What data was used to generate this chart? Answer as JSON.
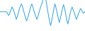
{
  "line_color": "#4aabdb",
  "background_color": "#ffffff",
  "values": [
    0.0,
    0.0,
    0.0,
    0.0,
    0.0,
    0.0,
    0.0,
    0.0,
    -0.1,
    -0.3,
    -0.5,
    -0.3,
    0.0,
    0.3,
    0.6,
    0.4,
    0.1,
    -0.2,
    -0.6,
    -1.0,
    -0.7,
    -0.3,
    0.1,
    0.5,
    0.8,
    1.0,
    0.7,
    0.3,
    -0.1,
    -0.5,
    -0.9,
    -1.2,
    -0.9,
    -0.5,
    -0.1,
    0.3,
    0.7,
    1.0,
    0.7,
    0.3,
    -0.1,
    -0.4,
    -0.7,
    -1.0,
    -0.7,
    -0.3,
    0.1,
    0.5,
    0.8,
    1.1,
    1.5,
    1.8,
    2.2,
    1.8,
    1.2,
    0.5,
    -0.2,
    -0.8,
    -1.4,
    -1.8,
    -1.3,
    -0.7,
    -0.1,
    0.5,
    1.0,
    0.6,
    0.1,
    -0.4,
    -0.9,
    -1.4,
    -1.0,
    -0.5,
    0.0,
    0.5,
    0.9,
    0.5,
    0.0,
    -0.6,
    -1.2,
    -1.6,
    -1.1,
    -0.6,
    -0.1,
    0.3,
    0.6,
    0.3,
    0.0,
    -0.3,
    -0.7,
    -1.0,
    -0.7,
    -0.4,
    -0.1,
    0.2,
    0.4,
    0.2,
    0.0,
    -0.2,
    -0.1,
    0.0
  ],
  "baseline": 0.0,
  "linewidth": 0.8,
  "ylim": [
    -2.5,
    1.5
  ]
}
